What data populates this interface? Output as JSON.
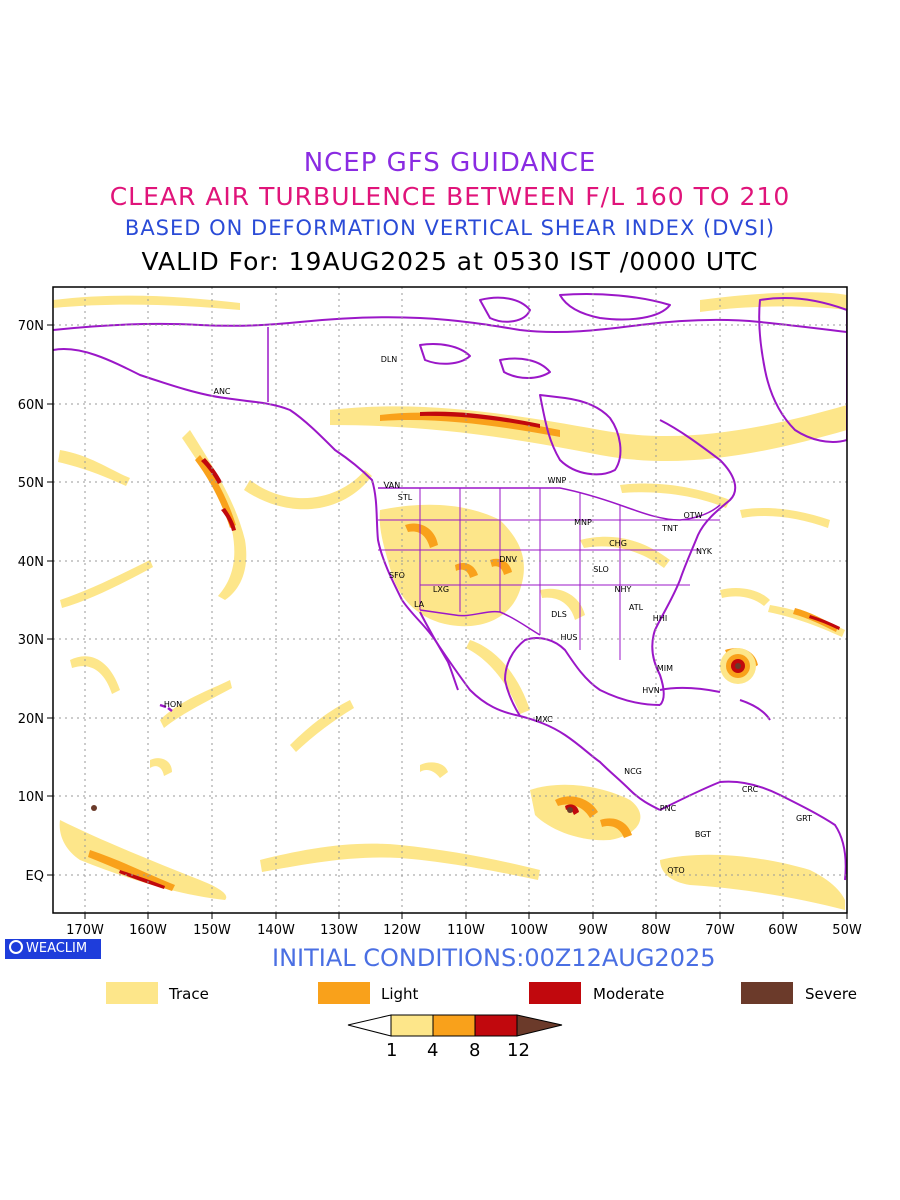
{
  "header": {
    "line1": "NCEP GFS GUIDANCE",
    "line2": "CLEAR AIR TURBULENCE BETWEEN F/L 160 TO 210",
    "line3": "BASED ON DEFORMATION VERTICAL SHEAR INDEX (DVSI)",
    "line4": "VALID For: 19AUG2025 at 0530 IST /0000 UTC"
  },
  "map": {
    "lat_labels": [
      "70N",
      "60N",
      "50N",
      "40N",
      "30N",
      "20N",
      "10N",
      "EQ"
    ],
    "lon_labels": [
      "170W",
      "160W",
      "150W",
      "140W",
      "130W",
      "120W",
      "110W",
      "100W",
      "90W",
      "80W",
      "70W",
      "60W",
      "50W"
    ],
    "stations": [
      "DLN",
      "ANC",
      "VAN",
      "STL",
      "WNP",
      "MNP",
      "TNT",
      "OTW",
      "CHG",
      "NYK",
      "DNV",
      "SFO",
      "LXG",
      "SLO",
      "NHY",
      "LA",
      "DLS",
      "ATL",
      "HHI",
      "HUS",
      "MIM",
      "HVN",
      "HON",
      "MXC",
      "NCG",
      "CRC",
      "PNC",
      "GRT",
      "BGT",
      "QTO"
    ],
    "colors": {
      "coastline": "#9b17c8",
      "trace": "#fde68a",
      "light": "#f9a11b",
      "moderate": "#c1080d",
      "severe": "#6b3a2a",
      "grid": "#999999"
    }
  },
  "footer": {
    "logo": "WEACLIM",
    "initial_conditions": "INITIAL CONDITIONS:00Z12AUG2025"
  },
  "legend": {
    "items": [
      {
        "label": "Trace",
        "color": "#fde68a"
      },
      {
        "label": "Light",
        "color": "#f9a11b"
      },
      {
        "label": "Moderate",
        "color": "#c1080d"
      },
      {
        "label": "Severe",
        "color": "#6b3a2a"
      }
    ],
    "colorbar_ticks": [
      "1",
      "4",
      "8",
      "12"
    ]
  }
}
